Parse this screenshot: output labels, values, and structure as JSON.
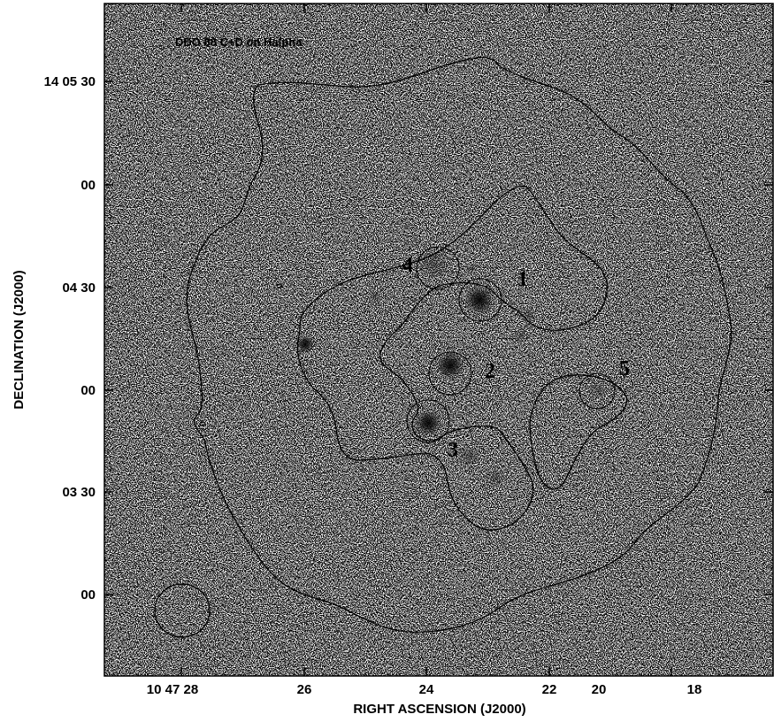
{
  "figure": {
    "title": "DDO 88 C+D on Halpha",
    "xlabel": "RIGHT ASCENSION (J2000)",
    "ylabel": "DECLINATION (J2000)",
    "x_ticks": [
      "10 47 28",
      "26",
      "24",
      "22",
      "20",
      "18"
    ],
    "y_ticks": [
      "14 05 30",
      "00",
      "04 30",
      "00",
      "03 30",
      "00"
    ],
    "regions": [
      {
        "label": "1"
      },
      {
        "label": "2"
      },
      {
        "label": "3"
      },
      {
        "label": "4"
      },
      {
        "label": "5"
      }
    ],
    "colors": {
      "background": "#ffffff",
      "ink": "#000000"
    }
  }
}
